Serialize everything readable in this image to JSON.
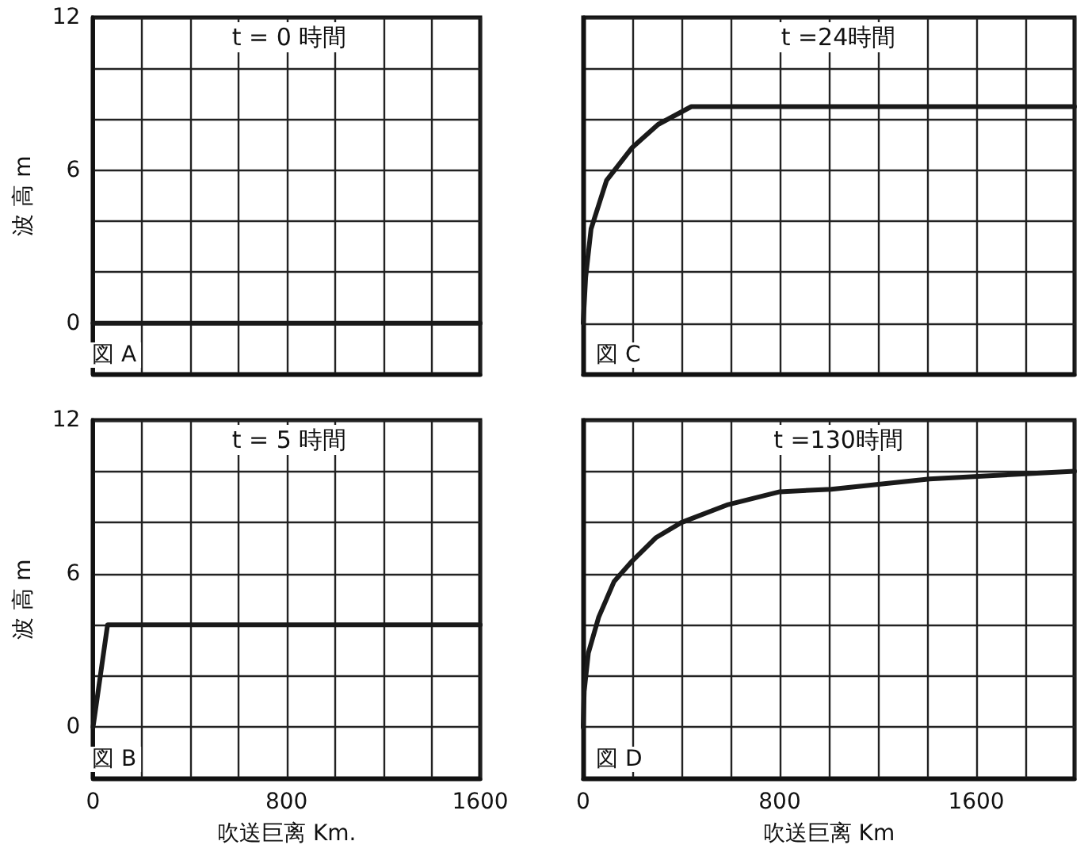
{
  "chart_data": [
    {
      "type": "line",
      "title": "t = 0 時間",
      "ylabel": "波 高 m",
      "annotations": [
        "図 A"
      ],
      "x": [
        0,
        1600
      ],
      "values": [
        0,
        0
      ],
      "color": "#1a1a1a",
      "xlim": [
        0,
        1600
      ],
      "ylim": [
        -2,
        12
      ],
      "xticks": [
        0,
        {
          "value": 200,
          "label": null
        },
        {
          "value": 400,
          "label": null
        },
        {
          "value": 600,
          "label": null
        },
        800,
        {
          "value": 1000,
          "label": null
        },
        {
          "value": 1200,
          "label": null
        },
        {
          "value": 1400,
          "label": null
        },
        1600
      ],
      "yticks": [
        {
          "value": -2,
          "label": null
        },
        0,
        {
          "value": 2,
          "label": null
        },
        {
          "value": 4,
          "label": null
        },
        6,
        {
          "value": 8,
          "label": null
        },
        {
          "value": 10,
          "label": null
        },
        12
      ],
      "tick_labels": "y",
      "grid": true,
      "marker": "none",
      "line_style": "solid"
    },
    {
      "type": "line",
      "title": "t =24時間",
      "annotations": [
        "図 C"
      ],
      "x": [
        0,
        10,
        32,
        95,
        200,
        305,
        440,
        2000
      ],
      "values": [
        0,
        1.8,
        3.7,
        5.6,
        6.9,
        7.8,
        8.5,
        8.5
      ],
      "color": "#1a1a1a",
      "xlim": [
        0,
        2000
      ],
      "ylim": [
        -2,
        12
      ],
      "xticks": [
        0,
        {
          "value": 200,
          "label": null
        },
        {
          "value": 400,
          "label": null
        },
        {
          "value": 600,
          "label": null
        },
        800,
        {
          "value": 1000,
          "label": null
        },
        {
          "value": 1200,
          "label": null
        },
        {
          "value": 1400,
          "label": null
        },
        1600,
        {
          "value": 1800,
          "label": null
        },
        {
          "value": 2000,
          "label": null
        }
      ],
      "yticks": [
        {
          "value": -2,
          "label": null
        },
        0,
        {
          "value": 2,
          "label": null
        },
        {
          "value": 4,
          "label": null
        },
        6,
        {
          "value": 8,
          "label": null
        },
        {
          "value": 10,
          "label": null
        },
        12
      ],
      "tick_labels": false,
      "grid": true,
      "marker": "none",
      "line_style": "solid"
    },
    {
      "type": "line",
      "title": "t = 5 時間",
      "xlabel": "吹送巨离 Km.",
      "ylabel": "波 高 m",
      "annotations": [
        "図 B"
      ],
      "x": [
        0,
        30,
        60,
        1600
      ],
      "values": [
        0,
        2,
        4,
        4
      ],
      "color": "#1a1a1a",
      "xlim": [
        0,
        1600
      ],
      "ylim": [
        -2,
        12
      ],
      "xticks": [
        0,
        {
          "value": 200,
          "label": null
        },
        {
          "value": 400,
          "label": null
        },
        {
          "value": 600,
          "label": null
        },
        800,
        {
          "value": 1000,
          "label": null
        },
        {
          "value": 1200,
          "label": null
        },
        {
          "value": 1400,
          "label": null
        },
        1600
      ],
      "yticks": [
        {
          "value": -2,
          "label": null
        },
        0,
        {
          "value": 2,
          "label": null
        },
        {
          "value": 4,
          "label": null
        },
        6,
        {
          "value": 8,
          "label": null
        },
        {
          "value": 10,
          "label": null
        },
        12
      ],
      "grid": true,
      "marker": "none",
      "line_style": "solid"
    },
    {
      "type": "line",
      "title": "t =130時間",
      "xlabel": "吹送巨离 Km",
      "annotations": [
        "図 D"
      ],
      "x": [
        0,
        4,
        21,
        63,
        126,
        200,
        295,
        400,
        590,
        800,
        1010,
        1410,
        1800,
        2000
      ],
      "values": [
        0,
        1.4,
        2.9,
        4.3,
        5.7,
        6.5,
        7.4,
        8.0,
        8.7,
        9.2,
        9.3,
        9.7,
        9.9,
        10.0
      ],
      "color": "#1a1a1a",
      "xlim": [
        0,
        2000
      ],
      "ylim": [
        -2,
        12
      ],
      "xticks": [
        0,
        {
          "value": 200,
          "label": null
        },
        {
          "value": 400,
          "label": null
        },
        {
          "value": 600,
          "label": null
        },
        800,
        {
          "value": 1000,
          "label": null
        },
        {
          "value": 1200,
          "label": null
        },
        {
          "value": 1400,
          "label": null
        },
        1600,
        {
          "value": 1800,
          "label": null
        },
        {
          "value": 2000,
          "label": null
        }
      ],
      "yticks": [
        {
          "value": -2,
          "label": null
        },
        0,
        {
          "value": 2,
          "label": null
        },
        {
          "value": 4,
          "label": null
        },
        6,
        {
          "value": 8,
          "label": null
        },
        {
          "value": 10,
          "label": null
        },
        12
      ],
      "tick_labels": "x",
      "grid": true,
      "marker": "none",
      "line_style": "solid"
    }
  ]
}
